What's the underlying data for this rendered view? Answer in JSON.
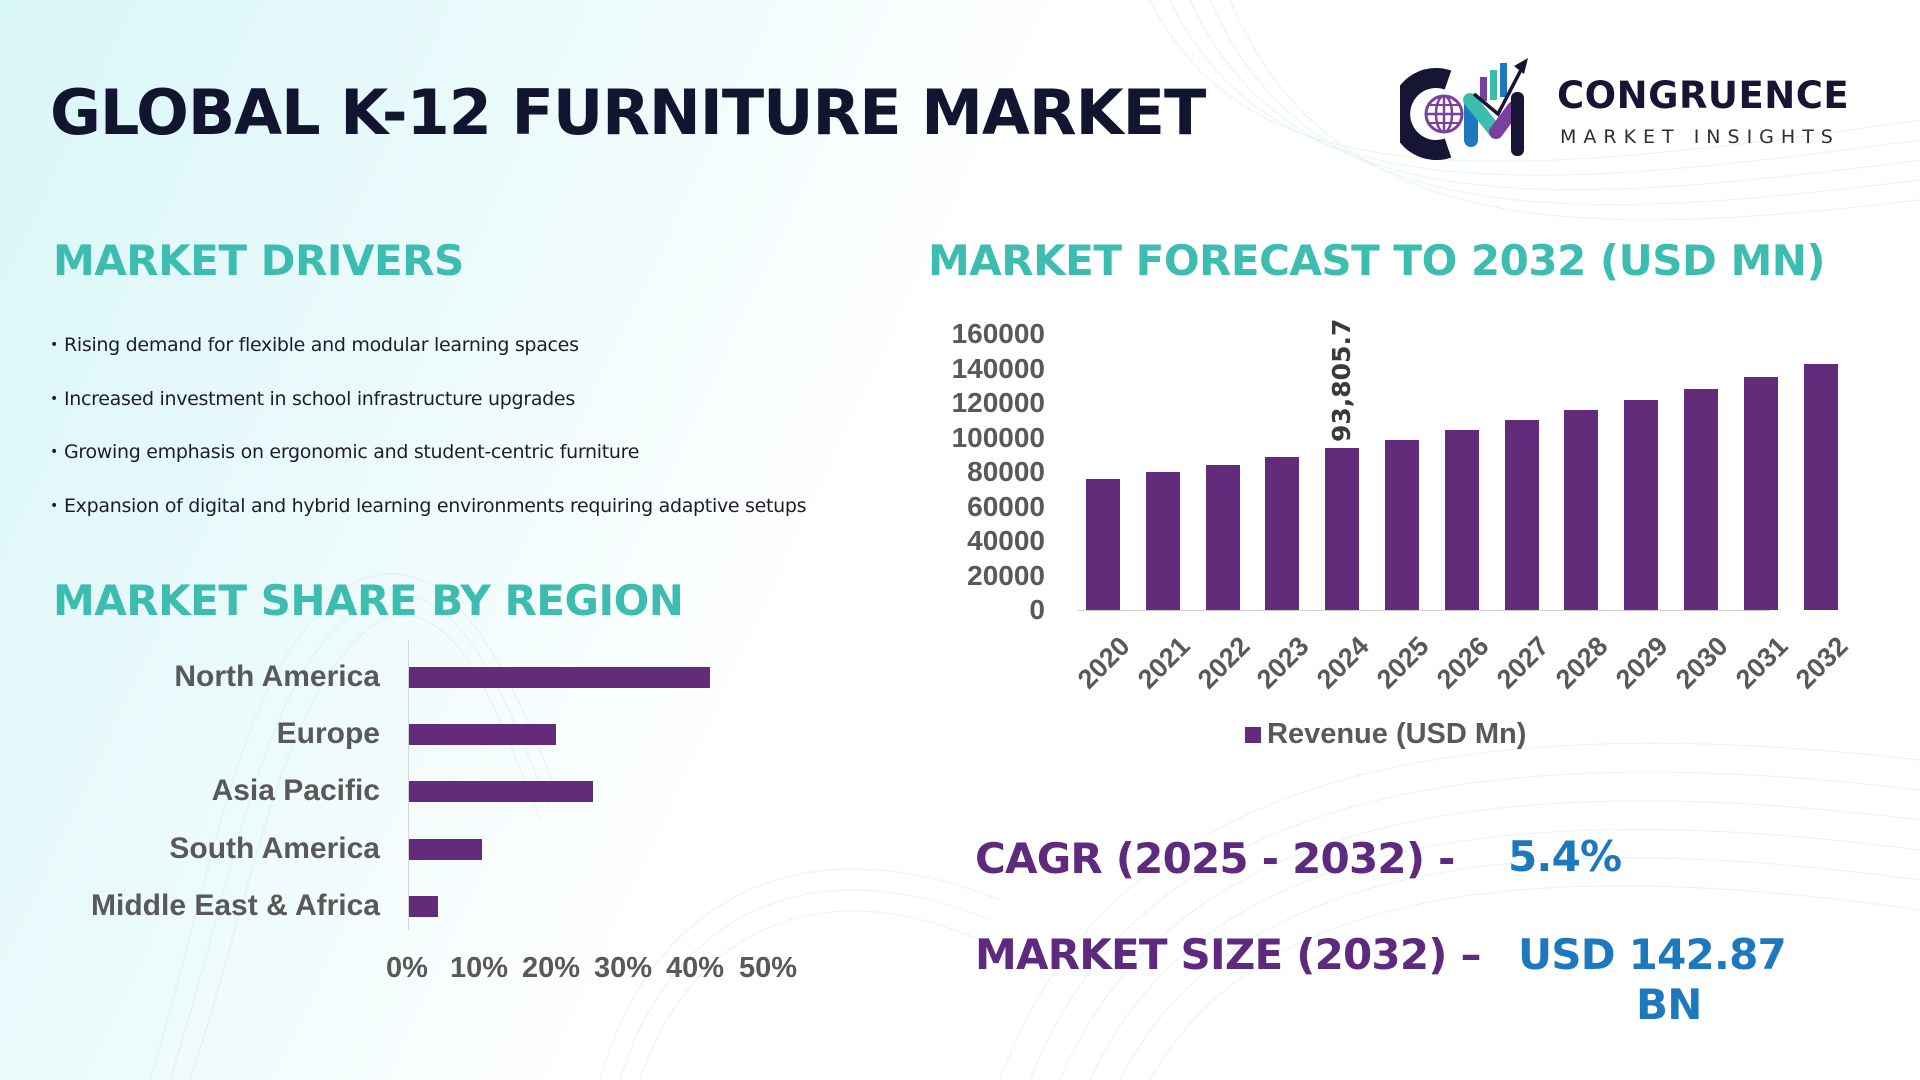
{
  "header": {
    "title": "GLOBAL K-12 FURNITURE MARKET",
    "logo": {
      "name": "CONGRUENCE",
      "subtitle": "MARKET INSIGHTS",
      "icon": "cm-globe-growth-logo-icon"
    }
  },
  "drivers": {
    "title": "MARKET DRIVERS",
    "bullet": "•",
    "items": [
      "Rising demand for flexible and modular learning spaces",
      "Increased investment in school infrastructure upgrades",
      "Growing emphasis on ergonomic and student-centric furniture",
      "Expansion of digital and hybrid learning environments requiring adaptive setups"
    ]
  },
  "forecast": {
    "title": "MARKET FORECAST TO 2032 (USD MN)",
    "data_label": "93,805.7",
    "legend": "Revenue (USD Mn)"
  },
  "region": {
    "title": "MARKET SHARE BY REGION"
  },
  "kpis": {
    "cagr_label": "CAGR (2025 - 2032) -",
    "cagr_value": "5.4%",
    "size_label": "MARKET SIZE (2032) –",
    "size_value_line1": "USD 142.87",
    "size_value_line2": "BN"
  },
  "colors": {
    "title": "#121530",
    "section_heading": "#3dbcb0",
    "bar": "#622c7a",
    "axis_text": "#595959",
    "kpi_label": "#5e2a7e",
    "kpi_value": "#1e78be"
  },
  "chart_data": [
    {
      "type": "bar",
      "title": "MARKET FORECAST TO 2032 (USD MN)",
      "categories": [
        "2020",
        "2021",
        "2022",
        "2023",
        "2024",
        "2025",
        "2026",
        "2027",
        "2028",
        "2029",
        "2030",
        "2031",
        "2032"
      ],
      "series": [
        {
          "name": "Revenue (USD Mn)",
          "values": [
            75800,
            80000,
            84000,
            88600,
            93805.7,
            98400,
            104200,
            109900,
            115700,
            122000,
            128300,
            135200,
            142870
          ]
        }
      ],
      "data_labels": [
        {
          "category": "2024",
          "text": "93,805.7"
        }
      ],
      "yticks": [
        "0",
        "20000",
        "40000",
        "60000",
        "80000",
        "100000",
        "120000",
        "140000",
        "160000"
      ],
      "ylim": [
        0,
        160000
      ],
      "xlabel": "",
      "ylabel": "",
      "grid": false,
      "legend_position": "bottom"
    },
    {
      "type": "bar",
      "orientation": "horizontal",
      "title": "MARKET SHARE BY REGION",
      "categories": [
        "North America",
        "Europe",
        "Asia Pacific",
        "South America",
        "Middle East & Africa"
      ],
      "values": [
        41,
        20,
        25,
        10,
        4
      ],
      "unit": "%",
      "xticks": [
        "0%",
        "10%",
        "20%",
        "30%",
        "40%",
        "50%"
      ],
      "xlim": [
        0,
        50
      ],
      "grid": false
    }
  ]
}
